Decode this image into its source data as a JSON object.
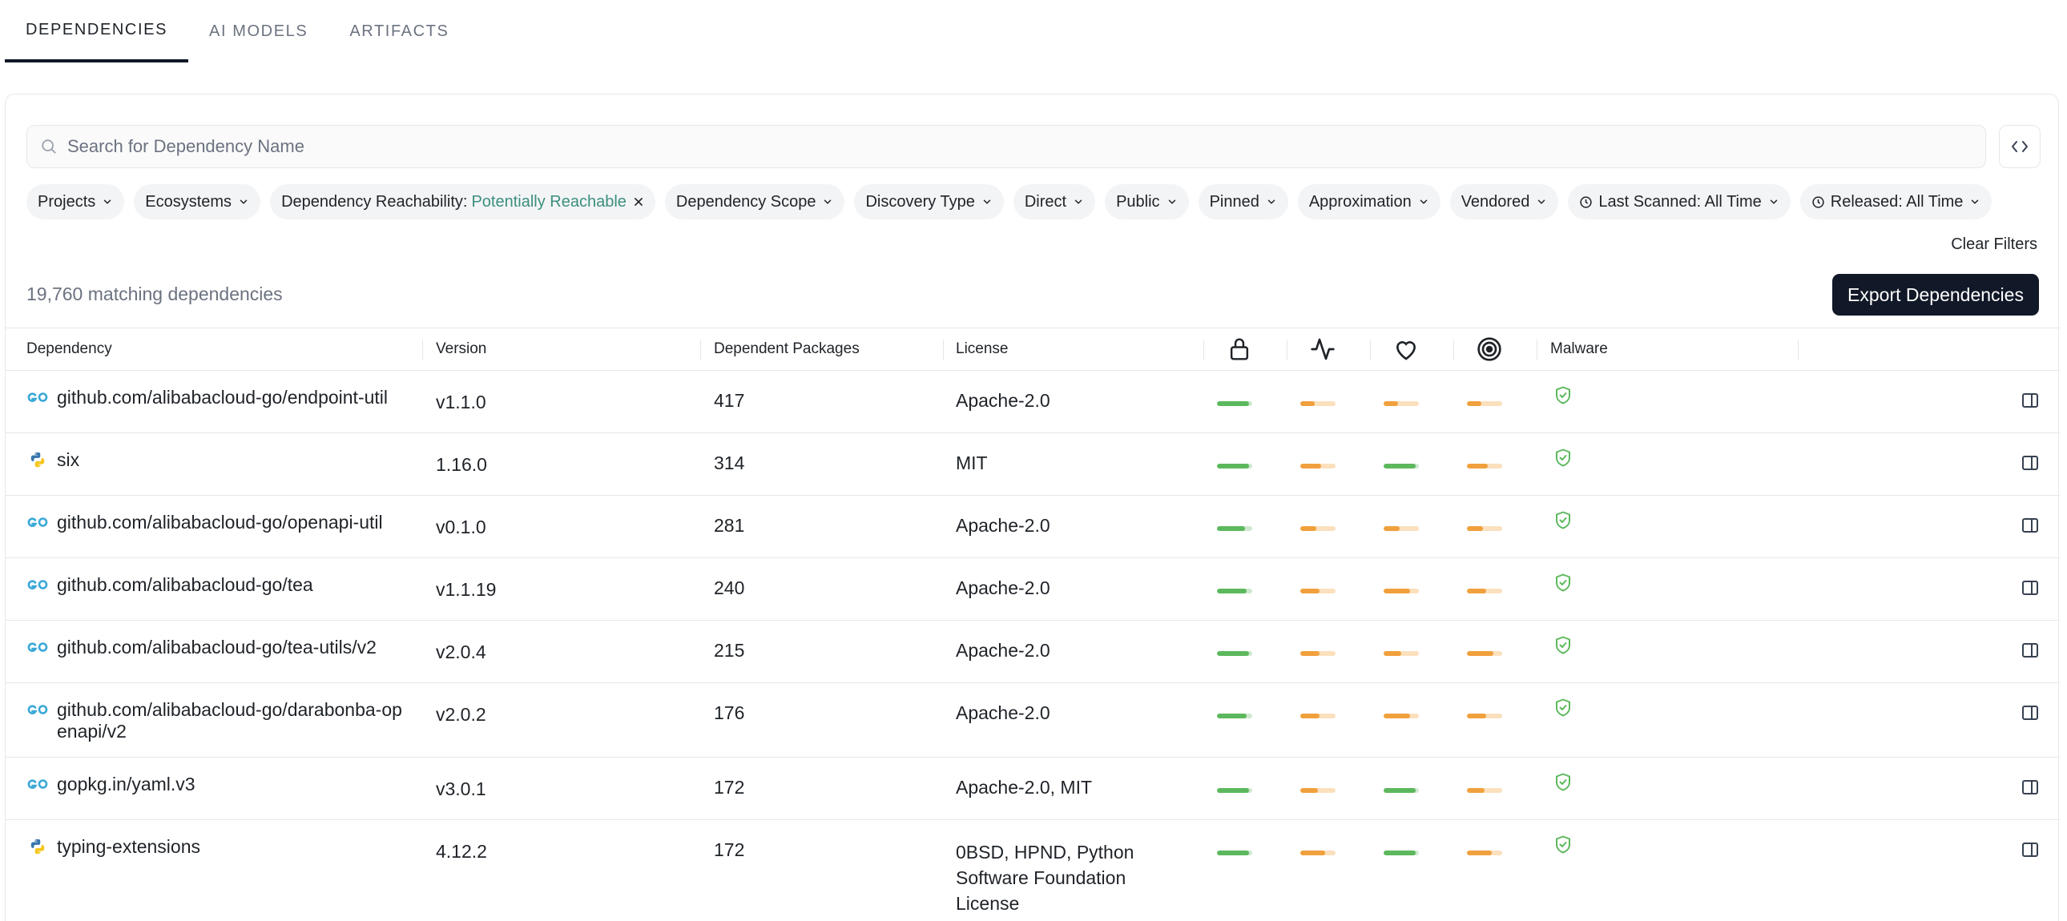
{
  "tabs": [
    {
      "label": "DEPENDENCIES",
      "active": true
    },
    {
      "label": "AI MODELS",
      "active": false
    },
    {
      "label": "ARTIFACTS",
      "active": false
    }
  ],
  "search": {
    "placeholder": "Search for Dependency Name",
    "value": ""
  },
  "filters": {
    "projects": "Projects",
    "ecosystems": "Ecosystems",
    "reachability_label": "Dependency Reachability:",
    "reachability_value": "Potentially Reachable",
    "scope": "Dependency Scope",
    "discovery": "Discovery Type",
    "direct": "Direct",
    "public": "Public",
    "pinned": "Pinned",
    "approximation": "Approximation",
    "vendored": "Vendored",
    "last_scanned": "Last Scanned: All Time",
    "released": "Released: All Time",
    "clear": "Clear Filters"
  },
  "summary": {
    "count_text": "19,760 matching dependencies",
    "export_label": "Export Dependencies"
  },
  "columns": {
    "dependency": "Dependency",
    "version": "Version",
    "dependent_packages": "Dependent Packages",
    "license": "License",
    "security_icon": "lock-icon",
    "activity_icon": "activity-icon",
    "popularity_icon": "heart-icon",
    "quality_icon": "target-icon",
    "malware": "Malware"
  },
  "colors": {
    "good": "#5cb85c",
    "warn": "#f0a03c",
    "good_track": "#cfe8cf",
    "warn_track": "#fbe0bd",
    "teal": "#3b8f7e",
    "go": "#3aa8d8"
  },
  "rows": [
    {
      "ecosystem": "go",
      "name": "github.com/alibabacloud-go/endpoint-util",
      "version": "v1.1.0",
      "dependent_packages": "417",
      "license": "Apache-2.0",
      "scores": [
        {
          "level": 0.9,
          "tone": "good"
        },
        {
          "level": 0.4,
          "tone": "warn"
        },
        {
          "level": 0.4,
          "tone": "warn"
        },
        {
          "level": 0.4,
          "tone": "warn"
        }
      ],
      "malware": "clean"
    },
    {
      "ecosystem": "python",
      "name": "six",
      "version": "1.16.0",
      "dependent_packages": "314",
      "license": "MIT",
      "scores": [
        {
          "level": 0.9,
          "tone": "good"
        },
        {
          "level": 0.6,
          "tone": "warn"
        },
        {
          "level": 0.9,
          "tone": "good"
        },
        {
          "level": 0.6,
          "tone": "warn"
        }
      ],
      "malware": "clean"
    },
    {
      "ecosystem": "go",
      "name": "github.com/alibabacloud-go/openapi-util",
      "version": "v0.1.0",
      "dependent_packages": "281",
      "license": "Apache-2.0",
      "scores": [
        {
          "level": 0.8,
          "tone": "good"
        },
        {
          "level": 0.45,
          "tone": "warn"
        },
        {
          "level": 0.45,
          "tone": "warn"
        },
        {
          "level": 0.45,
          "tone": "warn"
        }
      ],
      "malware": "clean"
    },
    {
      "ecosystem": "go",
      "name": "github.com/alibabacloud-go/tea",
      "version": "v1.1.19",
      "dependent_packages": "240",
      "license": "Apache-2.0",
      "scores": [
        {
          "level": 0.85,
          "tone": "good"
        },
        {
          "level": 0.55,
          "tone": "warn"
        },
        {
          "level": 0.75,
          "tone": "warn"
        },
        {
          "level": 0.55,
          "tone": "warn"
        }
      ],
      "malware": "clean"
    },
    {
      "ecosystem": "go",
      "name": "github.com/alibabacloud-go/tea-utils/v2",
      "version": "v2.0.4",
      "dependent_packages": "215",
      "license": "Apache-2.0",
      "scores": [
        {
          "level": 0.9,
          "tone": "good"
        },
        {
          "level": 0.55,
          "tone": "warn"
        },
        {
          "level": 0.5,
          "tone": "warn"
        },
        {
          "level": 0.75,
          "tone": "warn"
        }
      ],
      "malware": "clean"
    },
    {
      "ecosystem": "go",
      "name": "github.com/alibabacloud-go/darabonba-openapi/v2",
      "version": "v2.0.2",
      "dependent_packages": "176",
      "license": "Apache-2.0",
      "scores": [
        {
          "level": 0.85,
          "tone": "good"
        },
        {
          "level": 0.55,
          "tone": "warn"
        },
        {
          "level": 0.75,
          "tone": "warn"
        },
        {
          "level": 0.55,
          "tone": "warn"
        }
      ],
      "malware": "clean"
    },
    {
      "ecosystem": "go",
      "name": "gopkg.in/yaml.v3",
      "version": "v3.0.1",
      "dependent_packages": "172",
      "license": "Apache-2.0, MIT",
      "scores": [
        {
          "level": 0.9,
          "tone": "good"
        },
        {
          "level": 0.5,
          "tone": "warn"
        },
        {
          "level": 0.9,
          "tone": "good"
        },
        {
          "level": 0.5,
          "tone": "warn"
        }
      ],
      "malware": "clean"
    },
    {
      "ecosystem": "python",
      "name": "typing-extensions",
      "version": "4.12.2",
      "dependent_packages": "172",
      "license": "0BSD, HPND, Python Software Foundation License",
      "scores": [
        {
          "level": 0.9,
          "tone": "good"
        },
        {
          "level": 0.7,
          "tone": "warn"
        },
        {
          "level": 0.9,
          "tone": "good"
        },
        {
          "level": 0.7,
          "tone": "warn"
        }
      ],
      "malware": "clean"
    }
  ]
}
